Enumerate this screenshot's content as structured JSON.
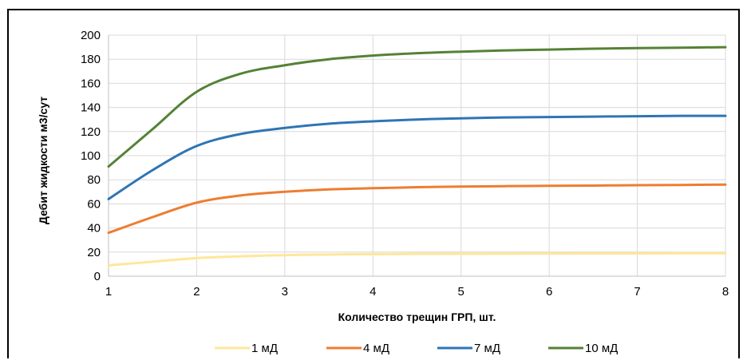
{
  "chart_data": {
    "type": "line",
    "title": "",
    "xlabel": "Количество трещин ГРП, шт.",
    "ylabel": "Дебит жидкости м3/сут",
    "xlim": [
      1,
      8
    ],
    "ylim": [
      0,
      200
    ],
    "x_ticks": [
      1,
      2,
      3,
      4,
      5,
      6,
      7,
      8
    ],
    "y_ticks": [
      0,
      20,
      40,
      60,
      80,
      100,
      120,
      140,
      160,
      180,
      200
    ],
    "grid": "vertical-and-horizontal",
    "legend_position": "bottom",
    "x": [
      1,
      1.5,
      2,
      2.5,
      3,
      3.5,
      4,
      4.5,
      5,
      5.5,
      6,
      6.5,
      7,
      7.5,
      8
    ],
    "series": [
      {
        "name": "1 мД",
        "color": "#FFE699",
        "values": [
          9,
          12,
          15,
          16.5,
          17.5,
          18,
          18.3,
          18.5,
          18.6,
          18.7,
          18.8,
          18.9,
          18.9,
          19,
          19
        ]
      },
      {
        "name": "4 мД",
        "color": "#ED7D31",
        "values": [
          36,
          49,
          61,
          67,
          70,
          72,
          73,
          73.8,
          74.3,
          74.7,
          75,
          75.2,
          75.5,
          75.7,
          76
        ]
      },
      {
        "name": "7 мД",
        "color": "#2E75B6",
        "values": [
          64,
          88,
          108,
          118,
          123,
          126.5,
          128.5,
          130,
          131,
          131.7,
          132,
          132.4,
          132.7,
          133,
          133
        ]
      },
      {
        "name": "10 мД",
        "color": "#548235",
        "values": [
          91,
          122,
          153,
          168,
          175,
          180,
          183,
          185,
          186.3,
          187.3,
          188,
          188.7,
          189.2,
          189.6,
          190
        ]
      }
    ]
  }
}
